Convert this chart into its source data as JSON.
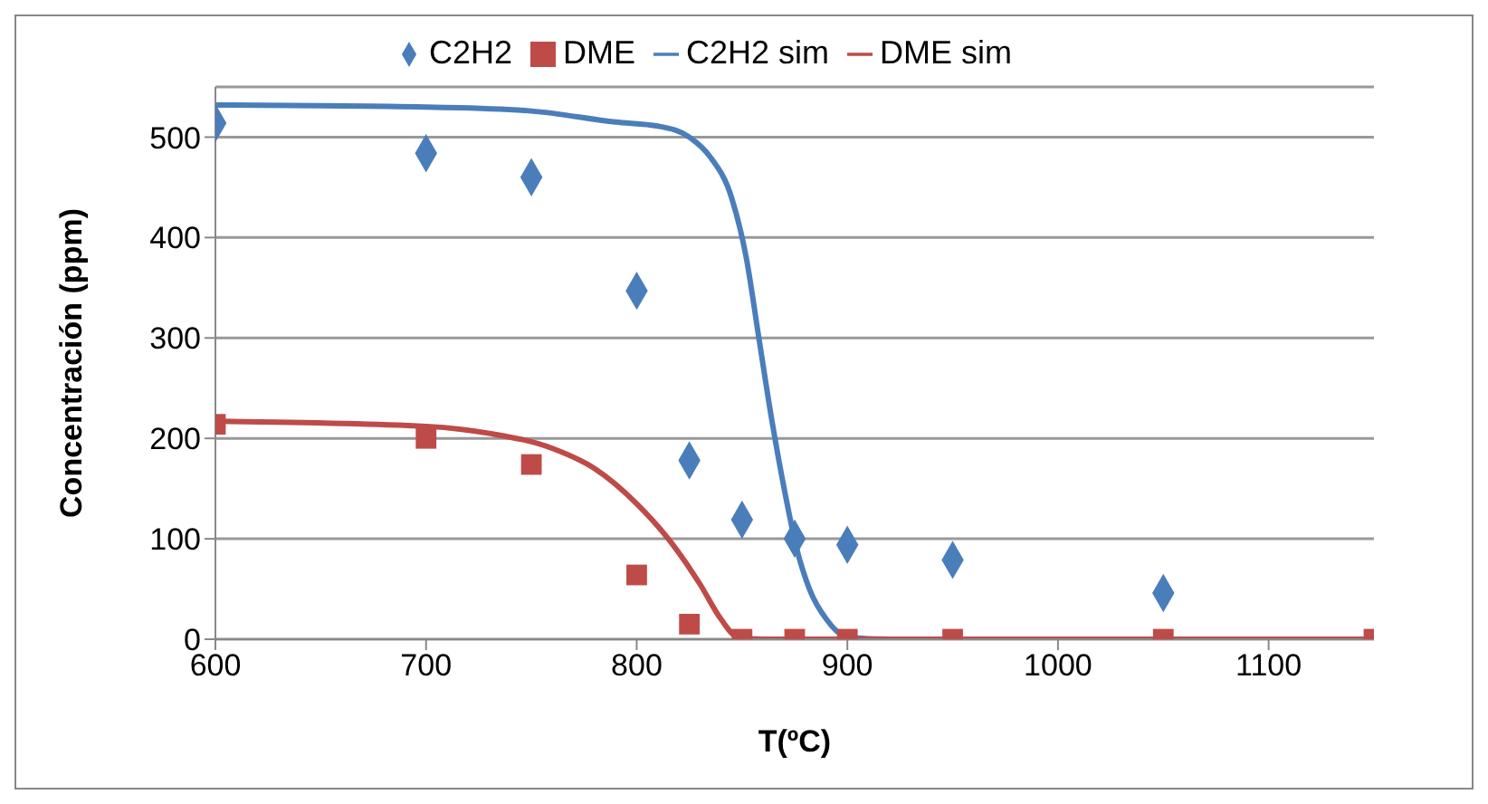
{
  "chart_data": {
    "type": "scatter",
    "xlabel": "T(ºC)",
    "ylabel": "Concentración (ppm)",
    "xlim": [
      600,
      1150
    ],
    "xticks": [
      600,
      700,
      800,
      900,
      1000,
      1100
    ],
    "ylim": [
      0,
      550
    ],
    "yticks": [
      0,
      100,
      200,
      300,
      400,
      500
    ],
    "grid": "y",
    "legend": "top",
    "series": [
      {
        "name": "C2H2",
        "marker": "diamond",
        "color": "#4a7ebb",
        "x": [
          600,
          700,
          750,
          800,
          825,
          850,
          875,
          900,
          950,
          1050
        ],
        "values": [
          514,
          484,
          460,
          347,
          178,
          119,
          100,
          94,
          79,
          46
        ]
      },
      {
        "name": "DME",
        "marker": "square",
        "color": "#be4b48",
        "x": [
          600,
          700,
          750,
          800,
          825,
          850,
          875,
          900,
          950,
          1050,
          1150
        ],
        "values": [
          214,
          200,
          174,
          64,
          15,
          0,
          0,
          0,
          0,
          0,
          0
        ]
      },
      {
        "name": "C2H2 sim",
        "type": "line",
        "marker": "none",
        "color": "#4a7ebb",
        "x": [
          600,
          700,
          750,
          790,
          810,
          825,
          835,
          845,
          852,
          858,
          864,
          870,
          876,
          882,
          890,
          900,
          920,
          1150
        ],
        "values": [
          532,
          530,
          526,
          515,
          511,
          500,
          480,
          440,
          380,
          300,
          220,
          150,
          90,
          50,
          20,
          2,
          0,
          0
        ]
      },
      {
        "name": "DME sim",
        "type": "line",
        "marker": "none",
        "color": "#be4b48",
        "x": [
          600,
          700,
          730,
          760,
          780,
          800,
          815,
          830,
          840,
          848,
          860,
          900,
          1150
        ],
        "values": [
          217,
          212,
          205,
          190,
          170,
          135,
          100,
          55,
          20,
          2,
          0,
          0,
          0
        ]
      }
    ]
  }
}
